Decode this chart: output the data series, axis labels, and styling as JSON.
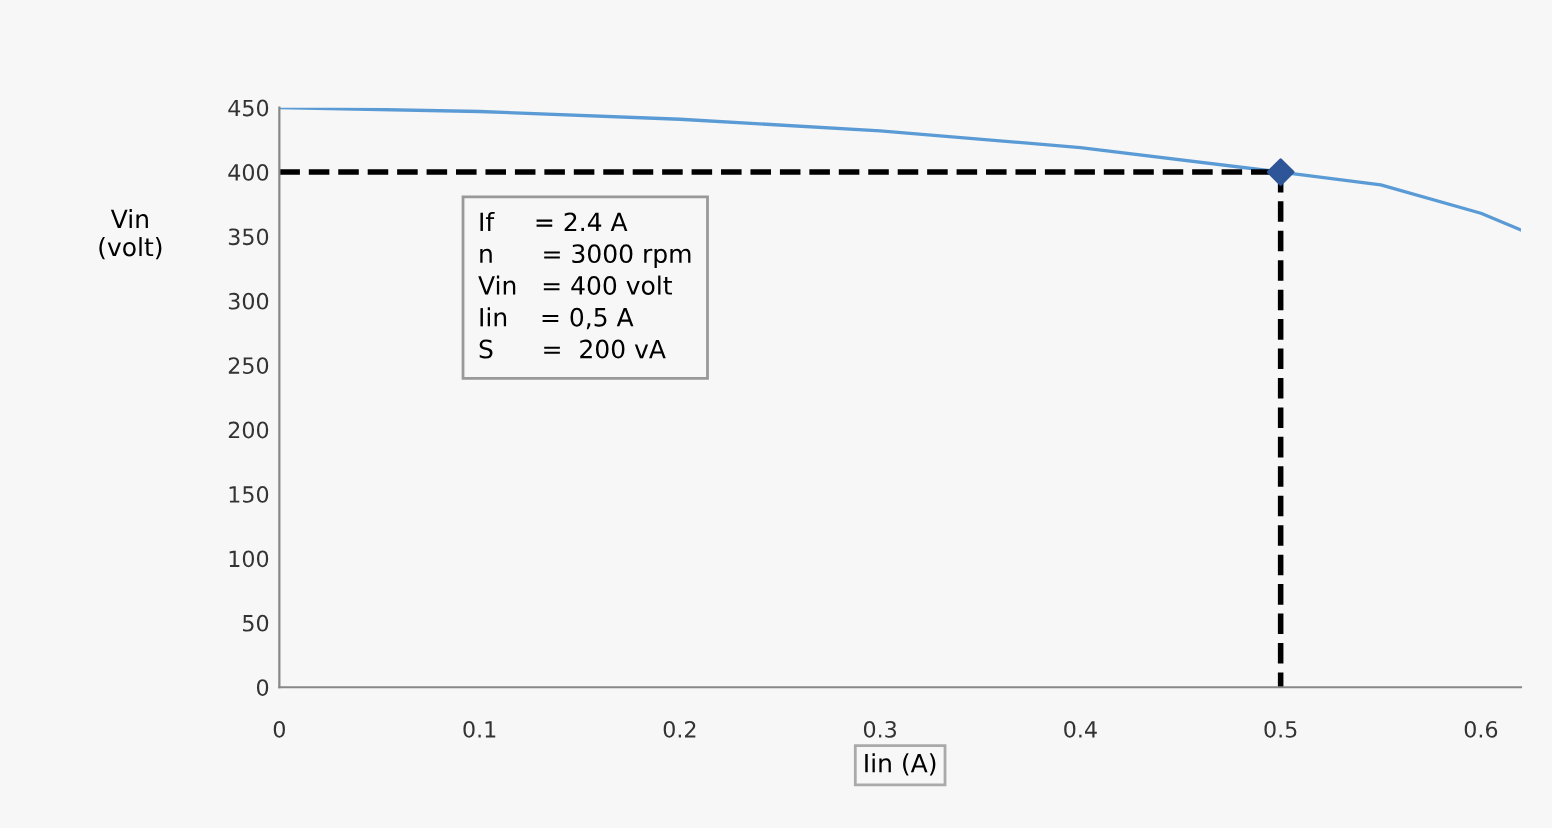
{
  "chart_data": {
    "type": "line",
    "xlabel": "Iin (A)",
    "ylabel": "Vin\n(volt)",
    "xlim": [
      0,
      0.62
    ],
    "ylim": [
      0,
      450
    ],
    "xticks": [
      0,
      0.1,
      0.2,
      0.3,
      0.4,
      0.5,
      0.6
    ],
    "yticks": [
      0,
      50,
      100,
      150,
      200,
      250,
      300,
      350,
      400,
      450
    ],
    "grid": false,
    "legend": false,
    "series": [
      {
        "color": "#5b9bd5",
        "x": [
          0,
          0.1,
          0.2,
          0.3,
          0.4,
          0.5,
          0.55,
          0.6,
          0.62
        ],
        "values": [
          450,
          447,
          441,
          432,
          419,
          400,
          390,
          368,
          355
        ],
        "marker": "none",
        "line_style": "solid"
      },
      {
        "color": "#000000",
        "x": [
          0,
          0.5,
          0.5
        ],
        "values": [
          400,
          400,
          0
        ],
        "marker": "none",
        "line_style": "dashed"
      },
      {
        "type": "scatter",
        "color": "#2e5597",
        "x": [
          0.5
        ],
        "values": [
          400
        ],
        "marker": "diamond"
      }
    ],
    "annotations": [
      "If     = 2.4 A\nn      = 3000 rpm\nVin   = 400 volt\nIin    = 0,5 A\nS      =  200 vA"
    ]
  }
}
